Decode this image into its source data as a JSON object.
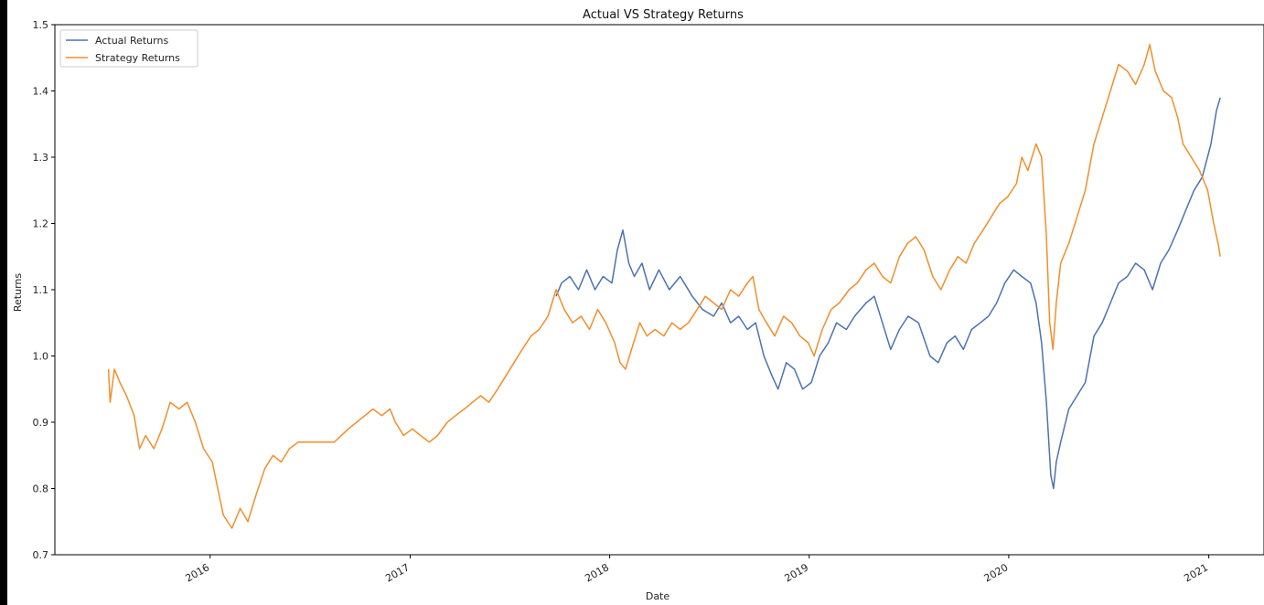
{
  "chart_data": {
    "type": "line",
    "title": "Actual VS Strategy Returns",
    "xlabel": "Date",
    "ylabel": "Returns",
    "ylim": [
      0.7,
      1.5
    ],
    "xlim": [
      "2015-03-23",
      "2021-04-12"
    ],
    "yticks": [
      0.7,
      0.8,
      0.9,
      1.0,
      1.1,
      1.2,
      1.3,
      1.4,
      1.5
    ],
    "ytick_labels": [
      "0.7",
      "0.8",
      "0.9",
      "1.0",
      "1.1",
      "1.2",
      "1.3",
      "1.4",
      "1.5"
    ],
    "xticks": [
      "2016-01-01",
      "2017-01-01",
      "2018-01-01",
      "2019-01-01",
      "2020-01-01",
      "2021-01-01"
    ],
    "xtick_labels": [
      "2016",
      "2017",
      "2018",
      "2019",
      "2020",
      "2021"
    ],
    "grid": false,
    "legend_position": "top-left",
    "series": [
      {
        "name": "Actual Returns",
        "color": "#4c72b0",
        "points": [
          [
            "2017-09-25",
            1.09
          ],
          [
            "2017-10-05",
            1.11
          ],
          [
            "2017-10-20",
            1.12
          ],
          [
            "2017-11-05",
            1.1
          ],
          [
            "2017-11-20",
            1.13
          ],
          [
            "2017-12-05",
            1.1
          ],
          [
            "2017-12-20",
            1.12
          ],
          [
            "2018-01-05",
            1.11
          ],
          [
            "2018-01-15",
            1.16
          ],
          [
            "2018-01-25",
            1.19
          ],
          [
            "2018-02-05",
            1.14
          ],
          [
            "2018-02-15",
            1.12
          ],
          [
            "2018-03-01",
            1.14
          ],
          [
            "2018-03-15",
            1.1
          ],
          [
            "2018-04-01",
            1.13
          ],
          [
            "2018-04-20",
            1.1
          ],
          [
            "2018-05-10",
            1.12
          ],
          [
            "2018-06-01",
            1.09
          ],
          [
            "2018-06-20",
            1.07
          ],
          [
            "2018-07-10",
            1.06
          ],
          [
            "2018-07-25",
            1.08
          ],
          [
            "2018-08-10",
            1.05
          ],
          [
            "2018-08-25",
            1.06
          ],
          [
            "2018-09-10",
            1.04
          ],
          [
            "2018-09-25",
            1.05
          ],
          [
            "2018-10-10",
            1.0
          ],
          [
            "2018-10-25",
            0.97
          ],
          [
            "2018-11-05",
            0.95
          ],
          [
            "2018-11-20",
            0.99
          ],
          [
            "2018-12-05",
            0.98
          ],
          [
            "2018-12-20",
            0.95
          ],
          [
            "2019-01-05",
            0.96
          ],
          [
            "2019-01-20",
            1.0
          ],
          [
            "2019-02-05",
            1.02
          ],
          [
            "2019-02-20",
            1.05
          ],
          [
            "2019-03-10",
            1.04
          ],
          [
            "2019-03-25",
            1.06
          ],
          [
            "2019-04-15",
            1.08
          ],
          [
            "2019-04-30",
            1.09
          ],
          [
            "2019-05-15",
            1.05
          ],
          [
            "2019-05-30",
            1.01
          ],
          [
            "2019-06-15",
            1.04
          ],
          [
            "2019-07-01",
            1.06
          ],
          [
            "2019-07-20",
            1.05
          ],
          [
            "2019-08-10",
            1.0
          ],
          [
            "2019-08-25",
            0.99
          ],
          [
            "2019-09-10",
            1.02
          ],
          [
            "2019-09-25",
            1.03
          ],
          [
            "2019-10-10",
            1.01
          ],
          [
            "2019-10-25",
            1.04
          ],
          [
            "2019-11-10",
            1.05
          ],
          [
            "2019-11-25",
            1.06
          ],
          [
            "2019-12-10",
            1.08
          ],
          [
            "2019-12-25",
            1.11
          ],
          [
            "2020-01-10",
            1.13
          ],
          [
            "2020-01-25",
            1.12
          ],
          [
            "2020-02-10",
            1.11
          ],
          [
            "2020-02-20",
            1.08
          ],
          [
            "2020-03-01",
            1.02
          ],
          [
            "2020-03-10",
            0.93
          ],
          [
            "2020-03-18",
            0.82
          ],
          [
            "2020-03-23",
            0.8
          ],
          [
            "2020-03-28",
            0.84
          ],
          [
            "2020-04-05",
            0.87
          ],
          [
            "2020-04-20",
            0.92
          ],
          [
            "2020-05-05",
            0.94
          ],
          [
            "2020-05-20",
            0.96
          ],
          [
            "2020-06-05",
            1.03
          ],
          [
            "2020-06-20",
            1.05
          ],
          [
            "2020-07-05",
            1.08
          ],
          [
            "2020-07-20",
            1.11
          ],
          [
            "2020-08-05",
            1.12
          ],
          [
            "2020-08-20",
            1.14
          ],
          [
            "2020-09-05",
            1.13
          ],
          [
            "2020-09-20",
            1.1
          ],
          [
            "2020-10-05",
            1.14
          ],
          [
            "2020-10-20",
            1.16
          ],
          [
            "2020-11-05",
            1.19
          ],
          [
            "2020-11-20",
            1.22
          ],
          [
            "2020-12-05",
            1.25
          ],
          [
            "2020-12-20",
            1.27
          ],
          [
            "2021-01-05",
            1.32
          ],
          [
            "2021-01-15",
            1.37
          ],
          [
            "2021-01-22",
            1.39
          ]
        ]
      },
      {
        "name": "Strategy Returns",
        "color": "#f28e2b",
        "points": [
          [
            "2015-06-29",
            0.98
          ],
          [
            "2015-07-02",
            0.93
          ],
          [
            "2015-07-10",
            0.98
          ],
          [
            "2015-07-20",
            0.96
          ],
          [
            "2015-08-01",
            0.94
          ],
          [
            "2015-08-15",
            0.91
          ],
          [
            "2015-08-25",
            0.86
          ],
          [
            "2015-09-05",
            0.88
          ],
          [
            "2015-09-20",
            0.86
          ],
          [
            "2015-10-05",
            0.89
          ],
          [
            "2015-10-20",
            0.93
          ],
          [
            "2015-11-05",
            0.92
          ],
          [
            "2015-11-20",
            0.93
          ],
          [
            "2015-12-05",
            0.9
          ],
          [
            "2015-12-20",
            0.86
          ],
          [
            "2016-01-05",
            0.84
          ],
          [
            "2016-01-15",
            0.8
          ],
          [
            "2016-01-25",
            0.76
          ],
          [
            "2016-02-10",
            0.74
          ],
          [
            "2016-02-25",
            0.77
          ],
          [
            "2016-03-10",
            0.75
          ],
          [
            "2016-03-25",
            0.79
          ],
          [
            "2016-04-10",
            0.83
          ],
          [
            "2016-04-25",
            0.85
          ],
          [
            "2016-05-10",
            0.84
          ],
          [
            "2016-05-25",
            0.86
          ],
          [
            "2016-06-10",
            0.87
          ],
          [
            "2016-07-20",
            0.87
          ],
          [
            "2016-08-15",
            0.87
          ],
          [
            "2016-09-10",
            0.89
          ],
          [
            "2016-09-25",
            0.9
          ],
          [
            "2016-10-10",
            0.91
          ],
          [
            "2016-10-25",
            0.92
          ],
          [
            "2016-11-10",
            0.91
          ],
          [
            "2016-11-25",
            0.92
          ],
          [
            "2016-12-05",
            0.9
          ],
          [
            "2016-12-20",
            0.88
          ],
          [
            "2017-01-05",
            0.89
          ],
          [
            "2017-01-20",
            0.88
          ],
          [
            "2017-02-05",
            0.87
          ],
          [
            "2017-02-20",
            0.88
          ],
          [
            "2017-03-10",
            0.9
          ],
          [
            "2017-03-25",
            0.91
          ],
          [
            "2017-04-10",
            0.92
          ],
          [
            "2017-04-25",
            0.93
          ],
          [
            "2017-05-10",
            0.94
          ],
          [
            "2017-05-25",
            0.93
          ],
          [
            "2017-06-10",
            0.95
          ],
          [
            "2017-06-25",
            0.97
          ],
          [
            "2017-07-10",
            0.99
          ],
          [
            "2017-07-25",
            1.01
          ],
          [
            "2017-08-10",
            1.03
          ],
          [
            "2017-08-25",
            1.04
          ],
          [
            "2017-09-10",
            1.06
          ],
          [
            "2017-09-25",
            1.1
          ],
          [
            "2017-10-10",
            1.07
          ],
          [
            "2017-10-25",
            1.05
          ],
          [
            "2017-11-10",
            1.06
          ],
          [
            "2017-11-25",
            1.04
          ],
          [
            "2017-12-10",
            1.07
          ],
          [
            "2017-12-25",
            1.05
          ],
          [
            "2018-01-10",
            1.02
          ],
          [
            "2018-01-20",
            0.99
          ],
          [
            "2018-01-30",
            0.98
          ],
          [
            "2018-02-10",
            1.01
          ],
          [
            "2018-02-25",
            1.05
          ],
          [
            "2018-03-10",
            1.03
          ],
          [
            "2018-03-25",
            1.04
          ],
          [
            "2018-04-10",
            1.03
          ],
          [
            "2018-04-25",
            1.05
          ],
          [
            "2018-05-10",
            1.04
          ],
          [
            "2018-05-25",
            1.05
          ],
          [
            "2018-06-10",
            1.07
          ],
          [
            "2018-06-25",
            1.09
          ],
          [
            "2018-07-10",
            1.08
          ],
          [
            "2018-07-25",
            1.07
          ],
          [
            "2018-08-10",
            1.1
          ],
          [
            "2018-08-25",
            1.09
          ],
          [
            "2018-09-10",
            1.11
          ],
          [
            "2018-09-20",
            1.12
          ],
          [
            "2018-10-01",
            1.07
          ],
          [
            "2018-10-15",
            1.05
          ],
          [
            "2018-10-30",
            1.03
          ],
          [
            "2018-11-15",
            1.06
          ],
          [
            "2018-11-30",
            1.05
          ],
          [
            "2018-12-15",
            1.03
          ],
          [
            "2018-12-30",
            1.02
          ],
          [
            "2019-01-10",
            1.0
          ],
          [
            "2019-01-25",
            1.04
          ],
          [
            "2019-02-10",
            1.07
          ],
          [
            "2019-02-25",
            1.08
          ],
          [
            "2019-03-15",
            1.1
          ],
          [
            "2019-03-30",
            1.11
          ],
          [
            "2019-04-15",
            1.13
          ],
          [
            "2019-04-30",
            1.14
          ],
          [
            "2019-05-15",
            1.12
          ],
          [
            "2019-05-30",
            1.11
          ],
          [
            "2019-06-15",
            1.15
          ],
          [
            "2019-06-30",
            1.17
          ],
          [
            "2019-07-15",
            1.18
          ],
          [
            "2019-07-30",
            1.16
          ],
          [
            "2019-08-15",
            1.12
          ],
          [
            "2019-08-30",
            1.1
          ],
          [
            "2019-09-15",
            1.13
          ],
          [
            "2019-09-30",
            1.15
          ],
          [
            "2019-10-15",
            1.14
          ],
          [
            "2019-10-30",
            1.17
          ],
          [
            "2019-11-15",
            1.19
          ],
          [
            "2019-11-30",
            1.21
          ],
          [
            "2019-12-15",
            1.23
          ],
          [
            "2019-12-30",
            1.24
          ],
          [
            "2020-01-15",
            1.26
          ],
          [
            "2020-01-25",
            1.3
          ],
          [
            "2020-02-05",
            1.28
          ],
          [
            "2020-02-20",
            1.32
          ],
          [
            "2020-03-01",
            1.3
          ],
          [
            "2020-03-10",
            1.18
          ],
          [
            "2020-03-16",
            1.05
          ],
          [
            "2020-03-22",
            1.01
          ],
          [
            "2020-03-28",
            1.08
          ],
          [
            "2020-04-05",
            1.14
          ],
          [
            "2020-04-20",
            1.17
          ],
          [
            "2020-05-05",
            1.21
          ],
          [
            "2020-05-20",
            1.25
          ],
          [
            "2020-06-05",
            1.32
          ],
          [
            "2020-06-20",
            1.36
          ],
          [
            "2020-07-05",
            1.4
          ],
          [
            "2020-07-20",
            1.44
          ],
          [
            "2020-08-05",
            1.43
          ],
          [
            "2020-08-20",
            1.41
          ],
          [
            "2020-09-05",
            1.44
          ],
          [
            "2020-09-15",
            1.47
          ],
          [
            "2020-09-25",
            1.43
          ],
          [
            "2020-10-10",
            1.4
          ],
          [
            "2020-10-25",
            1.39
          ],
          [
            "2020-11-05",
            1.36
          ],
          [
            "2020-11-15",
            1.32
          ],
          [
            "2020-11-30",
            1.3
          ],
          [
            "2020-12-15",
            1.28
          ],
          [
            "2020-12-30",
            1.25
          ],
          [
            "2021-01-10",
            1.2
          ],
          [
            "2021-01-18",
            1.17
          ],
          [
            "2021-01-22",
            1.15
          ]
        ]
      }
    ]
  }
}
